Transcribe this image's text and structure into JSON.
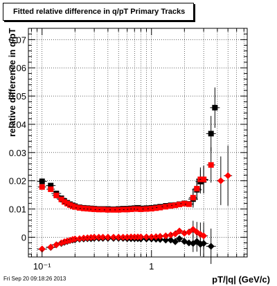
{
  "header": {
    "title": "Fitted relative difference in q/pT  Primary Tracks"
  },
  "footer": {
    "datestamp": "Fri Sep 20 09:18:26 2013"
  },
  "chart_data": {
    "type": "scatter",
    "title": "Fitted relative difference in q/pT  Primary Tracks",
    "xlabel": "pT/|q| (GeV/c)",
    "ylabel": "relative difference in q/pT",
    "x_scale": "log",
    "xlim": [
      0.075,
      7.5
    ],
    "ylim": [
      -0.007,
      0.074
    ],
    "grid": true,
    "x_ticks": [
      {
        "value": 0.1,
        "label": "10⁻¹"
      },
      {
        "value": 1,
        "label": "1"
      }
    ],
    "y_ticks": [
      0,
      0.01,
      0.02,
      0.03,
      0.04,
      0.05,
      0.06,
      0.07
    ],
    "y_tick_labels": [
      "0",
      "0.01",
      "0.02",
      "0.03",
      "0.04",
      "0.05",
      "0.06",
      "0.07"
    ],
    "series": [
      {
        "marker": "square",
        "color": "#000000",
        "points": [
          [
            0.1,
            0.0198
          ],
          [
            0.12,
            0.0183
          ],
          [
            0.135,
            0.0155
          ],
          [
            0.15,
            0.0138
          ],
          [
            0.16,
            0.0128
          ],
          [
            0.17,
            0.0122
          ],
          [
            0.18,
            0.0117
          ],
          [
            0.19,
            0.0113
          ],
          [
            0.2,
            0.011
          ],
          [
            0.22,
            0.0106
          ],
          [
            0.24,
            0.0104
          ],
          [
            0.26,
            0.0103
          ],
          [
            0.28,
            0.0102
          ],
          [
            0.3,
            0.0101
          ],
          [
            0.33,
            0.01
          ],
          [
            0.36,
            0.01
          ],
          [
            0.4,
            0.01
          ],
          [
            0.45,
            0.0099
          ],
          [
            0.5,
            0.01
          ],
          [
            0.55,
            0.0101
          ],
          [
            0.6,
            0.0101
          ],
          [
            0.65,
            0.0102
          ],
          [
            0.7,
            0.0103
          ],
          [
            0.75,
            0.0104
          ],
          [
            0.8,
            0.0102
          ],
          [
            0.9,
            0.0103
          ],
          [
            1.0,
            0.0104
          ],
          [
            1.1,
            0.0106
          ],
          [
            1.2,
            0.0108
          ],
          [
            1.35,
            0.0111
          ],
          [
            1.5,
            0.0113
          ],
          [
            1.65,
            0.0114
          ],
          [
            1.8,
            0.0117
          ],
          [
            2.0,
            0.012
          ],
          [
            2.2,
            0.0118
          ],
          [
            2.4,
            0.0135
          ],
          [
            2.6,
            0.0168
          ],
          [
            2.8,
            0.0197
          ],
          [
            3.0,
            0.0203
          ],
          [
            3.5,
            0.0367
          ],
          [
            3.8,
            0.0459
          ]
        ]
      },
      {
        "marker": "square",
        "color": "#ff0000",
        "points": [
          [
            0.1,
            0.0178
          ],
          [
            0.12,
            0.017
          ],
          [
            0.135,
            0.0148
          ],
          [
            0.15,
            0.0134
          ],
          [
            0.16,
            0.0125
          ],
          [
            0.17,
            0.0119
          ],
          [
            0.18,
            0.0114
          ],
          [
            0.19,
            0.011
          ],
          [
            0.2,
            0.0107
          ],
          [
            0.22,
            0.0104
          ],
          [
            0.24,
            0.0102
          ],
          [
            0.26,
            0.0101
          ],
          [
            0.28,
            0.01
          ],
          [
            0.3,
            0.0099
          ],
          [
            0.33,
            0.0098
          ],
          [
            0.36,
            0.0098
          ],
          [
            0.4,
            0.0097
          ],
          [
            0.45,
            0.0097
          ],
          [
            0.5,
            0.0097
          ],
          [
            0.55,
            0.0098
          ],
          [
            0.6,
            0.0098
          ],
          [
            0.65,
            0.0099
          ],
          [
            0.7,
            0.01
          ],
          [
            0.75,
            0.01
          ],
          [
            0.8,
            0.0099
          ],
          [
            0.9,
            0.01
          ],
          [
            1.0,
            0.0101
          ],
          [
            1.1,
            0.0103
          ],
          [
            1.2,
            0.0105
          ],
          [
            1.35,
            0.0108
          ],
          [
            1.5,
            0.0111
          ],
          [
            1.65,
            0.0113
          ],
          [
            1.8,
            0.0116
          ],
          [
            2.0,
            0.0119
          ],
          [
            2.2,
            0.0117
          ],
          [
            2.4,
            0.014
          ],
          [
            2.6,
            0.0172
          ],
          [
            2.8,
            0.0205
          ],
          [
            3.0,
            0.0205
          ],
          [
            3.5,
            0.0256
          ]
        ]
      },
      {
        "marker": "diamond",
        "color": "#000000",
        "points": [
          [
            0.1,
            -0.0042
          ],
          [
            0.12,
            -0.0036
          ],
          [
            0.135,
            -0.0027
          ],
          [
            0.15,
            -0.0022
          ],
          [
            0.16,
            -0.0018
          ],
          [
            0.17,
            -0.0015
          ],
          [
            0.18,
            -0.0012
          ],
          [
            0.19,
            -0.001
          ],
          [
            0.2,
            -0.0009
          ],
          [
            0.22,
            -0.0007
          ],
          [
            0.24,
            -0.0006
          ],
          [
            0.26,
            -0.0005
          ],
          [
            0.28,
            -0.0005
          ],
          [
            0.3,
            -0.0004
          ],
          [
            0.33,
            -0.0004
          ],
          [
            0.36,
            -0.0004
          ],
          [
            0.4,
            -0.0004
          ],
          [
            0.45,
            -0.0004
          ],
          [
            0.5,
            -0.0004
          ],
          [
            0.55,
            -0.0004
          ],
          [
            0.6,
            -0.0005
          ],
          [
            0.65,
            -0.0005
          ],
          [
            0.7,
            -0.0005
          ],
          [
            0.75,
            -0.0005
          ],
          [
            0.8,
            -0.0006
          ],
          [
            0.9,
            -0.0006
          ],
          [
            1.0,
            -0.0006
          ],
          [
            1.1,
            -0.0007
          ],
          [
            1.2,
            -0.0008
          ],
          [
            1.35,
            -0.001
          ],
          [
            1.5,
            -0.001
          ],
          [
            1.65,
            -0.0016
          ],
          [
            1.8,
            -0.0005
          ],
          [
            2.0,
            -0.0015
          ],
          [
            2.2,
            -0.002
          ],
          [
            2.4,
            -0.0022
          ],
          [
            2.6,
            -0.0015
          ],
          [
            2.8,
            -0.0025
          ],
          [
            3.0,
            -0.0022
          ],
          [
            3.5,
            -0.0032
          ]
        ]
      },
      {
        "marker": "diamond",
        "color": "#ff0000",
        "points": [
          [
            0.1,
            -0.0042
          ],
          [
            0.12,
            -0.0035
          ],
          [
            0.135,
            -0.0027
          ],
          [
            0.15,
            -0.002
          ],
          [
            0.16,
            -0.0016
          ],
          [
            0.17,
            -0.0013
          ],
          [
            0.18,
            -0.0011
          ],
          [
            0.19,
            -0.0008
          ],
          [
            0.2,
            -0.0006
          ],
          [
            0.22,
            -0.0005
          ],
          [
            0.24,
            -0.0003
          ],
          [
            0.26,
            -0.0002
          ],
          [
            0.28,
            -0.0001
          ],
          [
            0.3,
            0.0
          ],
          [
            0.33,
            0.0
          ],
          [
            0.36,
            0.0
          ],
          [
            0.4,
            0.0
          ],
          [
            0.45,
            0.0
          ],
          [
            0.5,
            0.0
          ],
          [
            0.55,
            0.0
          ],
          [
            0.6,
            0.0
          ],
          [
            0.65,
            0.0001
          ],
          [
            0.7,
            0.0001
          ],
          [
            0.75,
            0.0001
          ],
          [
            0.8,
            0.0001
          ],
          [
            0.9,
            0.0001
          ],
          [
            1.0,
            0.0001
          ],
          [
            1.1,
            0.0002
          ],
          [
            1.2,
            0.0003
          ],
          [
            1.35,
            0.0005
          ],
          [
            1.5,
            0.0008
          ],
          [
            1.65,
            0.0012
          ],
          [
            1.8,
            0.0022
          ],
          [
            2.0,
            0.0014
          ],
          [
            2.2,
            0.0018
          ],
          [
            2.4,
            0.0028
          ],
          [
            2.6,
            0.0018
          ],
          [
            2.8,
            0.001
          ],
          [
            3.0,
            0.0005
          ],
          [
            4.3,
            0.02
          ],
          [
            5.0,
            0.0218
          ]
        ]
      }
    ]
  }
}
